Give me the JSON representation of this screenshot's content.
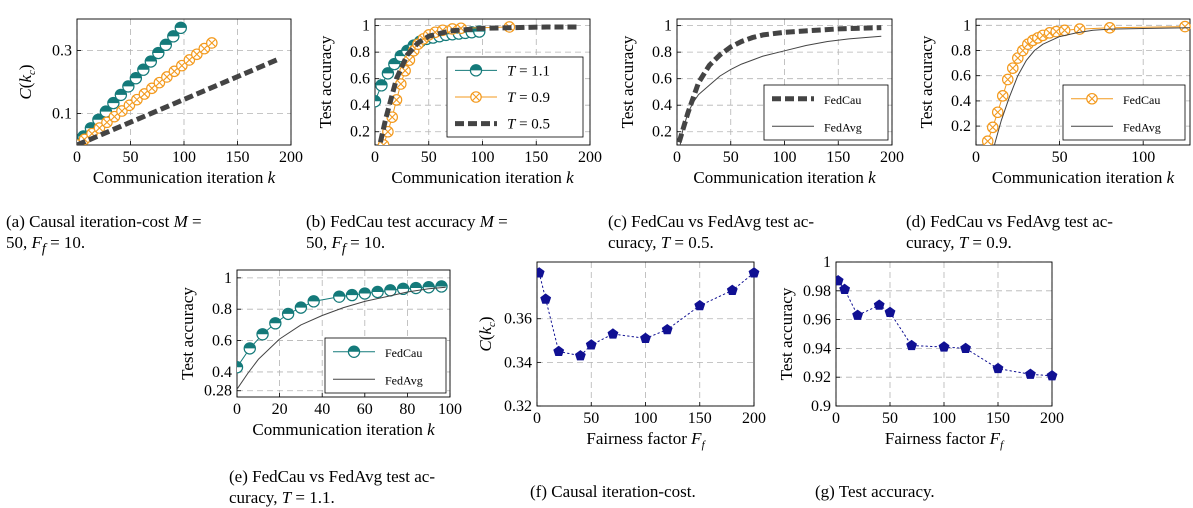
{
  "colors": {
    "teal": "#147a7a",
    "orange": "#f39a1e",
    "navy": "#101093",
    "gray": "#b4b4b4",
    "dark": "#444444"
  },
  "captions": [
    "(a) Causal iteration-cost M = 50, F_f = 10.",
    "(b) FedCau test accuracy M = 50, F_f = 10.",
    "(c) FedCau vs FedAvg test accuracy, T = 0.5.",
    "(d) FedCau vs FedAvg test accuracy, T = 0.9.",
    "(e) FedCau vs FedAvg test accuracy, T = 1.1.",
    "(f) Causal iteration-cost.",
    "(g) Test accuracy."
  ],
  "chart_data": [
    {
      "id": "a",
      "type": "line",
      "xlabel": "Communication iteration k",
      "ylabel": "C(k_c)",
      "xlim": [
        0,
        200
      ],
      "ylim": [
        0,
        0.4
      ],
      "xticks": [
        0,
        50,
        100,
        150,
        200
      ],
      "yticks": [
        0.1,
        0.3
      ],
      "grid": true,
      "series": [
        {
          "name": "T = 1.1",
          "color": "teal",
          "style": "circle-half",
          "width": 1,
          "x": [
            0,
            6,
            13,
            20,
            27,
            34,
            41,
            48,
            55,
            62,
            69,
            76,
            83,
            90,
            97
          ],
          "y": [
            0,
            0.027,
            0.053,
            0.08,
            0.106,
            0.133,
            0.159,
            0.186,
            0.212,
            0.239,
            0.265,
            0.292,
            0.318,
            0.345,
            0.372
          ]
        },
        {
          "name": "T = 0.9",
          "color": "orange",
          "style": "circle-x",
          "width": 1,
          "x": [
            0,
            7,
            14,
            21,
            28,
            35,
            42,
            49,
            56,
            63,
            70,
            77,
            84,
            91,
            98,
            105,
            112,
            119,
            126
          ],
          "y": [
            0,
            0.018,
            0.036,
            0.054,
            0.072,
            0.09,
            0.108,
            0.126,
            0.144,
            0.162,
            0.18,
            0.198,
            0.216,
            0.234,
            0.252,
            0.27,
            0.288,
            0.306,
            0.324
          ]
        },
        {
          "name": "T = 0.5",
          "color": "dark",
          "style": "dashed",
          "width": 5,
          "x": [
            0,
            190
          ],
          "y": [
            0,
            0.275
          ]
        }
      ]
    },
    {
      "id": "b",
      "type": "line",
      "xlabel": "Communication iteration k",
      "ylabel": "Test accuracy",
      "xlim": [
        0,
        200
      ],
      "ylim": [
        0.1,
        1.05
      ],
      "xticks": [
        0,
        50,
        100,
        150,
        200
      ],
      "yticks": [
        0.2,
        0.4,
        0.6,
        0.8,
        1
      ],
      "grid": true,
      "legend": "bottom-right",
      "series": [
        {
          "name": "T = 1.1",
          "legend_label": "T = 1.1",
          "color": "teal",
          "style": "circle-half",
          "width": 1,
          "x": [
            0,
            6,
            12,
            18,
            24,
            30,
            36,
            42,
            48,
            54,
            60,
            66,
            72,
            78,
            84,
            90,
            97
          ],
          "y": [
            0.43,
            0.55,
            0.64,
            0.71,
            0.77,
            0.81,
            0.85,
            0.88,
            0.9,
            0.91,
            0.92,
            0.93,
            0.935,
            0.94,
            0.945,
            0.95,
            0.955
          ]
        },
        {
          "name": "T = 0.9",
          "legend_label": "T = 0.9",
          "color": "orange",
          "style": "circle-x",
          "width": 1,
          "x": [
            8,
            12,
            16,
            20,
            24,
            28,
            32,
            36,
            40,
            45,
            50,
            56,
            63,
            72,
            80,
            125
          ],
          "y": [
            0.1,
            0.2,
            0.31,
            0.44,
            0.56,
            0.66,
            0.74,
            0.81,
            0.86,
            0.9,
            0.93,
            0.95,
            0.965,
            0.975,
            0.98,
            0.99
          ]
        },
        {
          "name": "T = 0.5",
          "legend_label": "T = 0.5",
          "color": "dark",
          "style": "dashed",
          "width": 5,
          "x": [
            5,
            10,
            20,
            30,
            40,
            50,
            70,
            100,
            130,
            160,
            190
          ],
          "y": [
            0.12,
            0.3,
            0.6,
            0.78,
            0.87,
            0.92,
            0.96,
            0.98,
            0.985,
            0.99,
            0.99
          ]
        }
      ]
    },
    {
      "id": "c",
      "type": "line",
      "xlabel": "Communication iteration k",
      "ylabel": "Test accuracy",
      "xlim": [
        0,
        200
      ],
      "ylim": [
        0.1,
        1.05
      ],
      "xticks": [
        0,
        50,
        100,
        150,
        200
      ],
      "yticks": [
        0.2,
        0.4,
        0.6,
        0.8,
        1
      ],
      "grid": true,
      "legend": "bottom-right",
      "series": [
        {
          "name": "FedCau",
          "legend_label": "FedCau",
          "color": "dark",
          "style": "dashed",
          "width": 5,
          "x": [
            2,
            10,
            20,
            30,
            40,
            50,
            60,
            70,
            80,
            100,
            120,
            150,
            190
          ],
          "y": [
            0.12,
            0.34,
            0.57,
            0.7,
            0.78,
            0.84,
            0.88,
            0.91,
            0.93,
            0.95,
            0.96,
            0.975,
            0.985
          ]
        },
        {
          "name": "FedAvg",
          "legend_label": "FedAvg",
          "color": "dark",
          "style": "solid",
          "width": 1,
          "x": [
            2,
            5,
            10,
            15,
            20,
            30,
            40,
            50,
            60,
            70,
            80,
            100,
            120,
            140,
            160,
            190
          ],
          "y": [
            0.05,
            0.2,
            0.34,
            0.42,
            0.48,
            0.55,
            0.62,
            0.67,
            0.71,
            0.74,
            0.77,
            0.81,
            0.85,
            0.88,
            0.9,
            0.92
          ]
        }
      ]
    },
    {
      "id": "d",
      "type": "line",
      "xlabel": "Communication iteration k",
      "ylabel": "Test accuracy",
      "xlim": [
        0,
        128
      ],
      "ylim": [
        0.05,
        1.05
      ],
      "xticks": [
        0,
        50,
        100
      ],
      "yticks": [
        0.2,
        0.4,
        0.6,
        0.8,
        1
      ],
      "grid": true,
      "legend": "bottom-right",
      "series": [
        {
          "name": "FedCau",
          "legend_label": "FedCau",
          "color": "orange",
          "style": "circle-x",
          "width": 1,
          "x": [
            7,
            10,
            13,
            16,
            19,
            22,
            25,
            28,
            31,
            34,
            37,
            40,
            44,
            48,
            53,
            62,
            80,
            125
          ],
          "y": [
            0.08,
            0.19,
            0.31,
            0.44,
            0.57,
            0.66,
            0.74,
            0.8,
            0.85,
            0.88,
            0.9,
            0.92,
            0.94,
            0.95,
            0.96,
            0.97,
            0.98,
            0.99
          ]
        },
        {
          "name": "FedAvg",
          "legend_label": "FedAvg",
          "color": "dark",
          "style": "solid",
          "width": 1,
          "x": [
            11,
            15,
            20,
            25,
            30,
            35,
            40,
            50,
            60,
            70,
            80,
            100,
            128
          ],
          "y": [
            0.05,
            0.24,
            0.43,
            0.6,
            0.72,
            0.8,
            0.85,
            0.91,
            0.94,
            0.96,
            0.97,
            0.975,
            0.98
          ]
        }
      ]
    },
    {
      "id": "e",
      "type": "line",
      "xlabel": "Communication iteration k",
      "ylabel": "Test accuracy",
      "xlim": [
        0,
        100
      ],
      "ylim": [
        0.24,
        1.05
      ],
      "xticks": [
        0,
        20,
        40,
        60,
        80,
        100
      ],
      "yticks": [
        0.28,
        0.4,
        0.6,
        0.8,
        1
      ],
      "grid": true,
      "legend": "bottom-right",
      "series": [
        {
          "name": "FedCau",
          "legend_label": "FedCau",
          "color": "teal",
          "style": "circle-half",
          "width": 1,
          "x": [
            0,
            6,
            12,
            18,
            24,
            30,
            36,
            48,
            54,
            60,
            66,
            72,
            78,
            84,
            90,
            96
          ],
          "y": [
            0.43,
            0.55,
            0.64,
            0.71,
            0.77,
            0.81,
            0.85,
            0.88,
            0.89,
            0.9,
            0.91,
            0.92,
            0.93,
            0.935,
            0.94,
            0.945
          ]
        },
        {
          "name": "FedAvg",
          "legend_label": "FedAvg",
          "color": "dark",
          "style": "solid",
          "width": 1,
          "x": [
            0,
            5,
            10,
            20,
            30,
            40,
            50,
            60,
            70,
            80,
            90,
            98
          ],
          "y": [
            0.29,
            0.39,
            0.48,
            0.61,
            0.7,
            0.76,
            0.81,
            0.85,
            0.88,
            0.91,
            0.93,
            0.94
          ]
        }
      ]
    },
    {
      "id": "f",
      "type": "scatter",
      "xlabel": "Fairness factor F_f",
      "ylabel": "C(k_c)",
      "xlim": [
        0,
        200
      ],
      "ylim": [
        0.32,
        0.386
      ],
      "xticks": [
        0,
        50,
        100,
        150,
        200
      ],
      "yticks": [
        0.32,
        0.34,
        0.36
      ],
      "grid": true,
      "series": [
        {
          "name": "",
          "color": "navy",
          "style": "pentagon-dotted",
          "width": 1,
          "x": [
            2,
            8,
            20,
            40,
            50,
            70,
            100,
            120,
            150,
            180,
            200
          ],
          "y": [
            0.381,
            0.369,
            0.345,
            0.343,
            0.348,
            0.353,
            0.351,
            0.355,
            0.366,
            0.373,
            0.381
          ]
        }
      ]
    },
    {
      "id": "g",
      "type": "scatter",
      "xlabel": "Fairness factor F_f",
      "ylabel": "Test accuracy",
      "xlim": [
        0,
        200
      ],
      "ylim": [
        0.9,
        1
      ],
      "xticks": [
        0,
        50,
        100,
        150,
        200
      ],
      "yticks": [
        0.9,
        0.92,
        0.94,
        0.96,
        0.98,
        1
      ],
      "grid": true,
      "series": [
        {
          "name": "",
          "color": "navy",
          "style": "pentagon-dotted",
          "width": 1,
          "x": [
            2,
            8,
            20,
            40,
            50,
            70,
            100,
            120,
            150,
            180,
            200
          ],
          "y": [
            0.987,
            0.981,
            0.963,
            0.97,
            0.965,
            0.942,
            0.941,
            0.94,
            0.926,
            0.922,
            0.921
          ]
        }
      ]
    }
  ]
}
